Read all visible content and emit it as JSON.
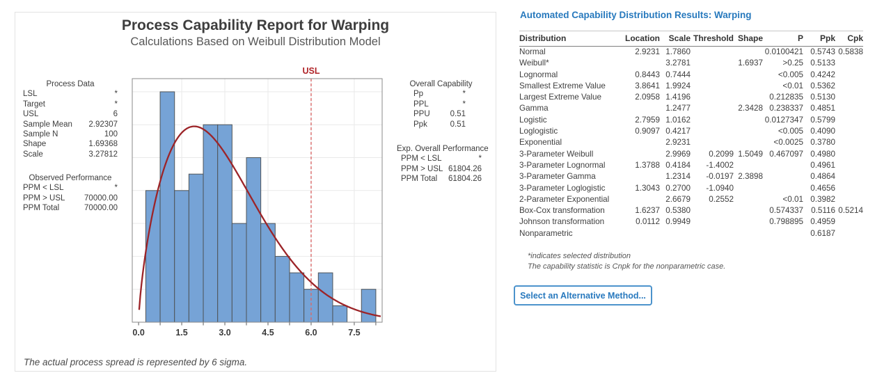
{
  "report": {
    "title": "Process Capability Report for Warping",
    "subtitle": "Calculations Based on Weibull Distribution Model",
    "footnote": "The actual process spread is represented by 6 sigma.",
    "process_data": {
      "heading": "Process Data",
      "rows": [
        [
          "LSL",
          "*"
        ],
        [
          "Target",
          "*"
        ],
        [
          "USL",
          "6"
        ],
        [
          "Sample Mean",
          "2.92307"
        ],
        [
          "Sample N",
          "100"
        ],
        [
          "Shape",
          "1.69368"
        ],
        [
          "Scale",
          "3.27812"
        ]
      ]
    },
    "observed_performance": {
      "heading": "Observed Performance",
      "rows": [
        [
          "PPM < LSL",
          "*"
        ],
        [
          "PPM > USL",
          "70000.00"
        ],
        [
          "PPM Total",
          "70000.00"
        ]
      ]
    },
    "overall_capability": {
      "heading": "Overall Capability",
      "rows": [
        [
          "Pp",
          "*"
        ],
        [
          "PPL",
          "*"
        ],
        [
          "PPU",
          "0.51"
        ],
        [
          "Ppk",
          "0.51"
        ]
      ]
    },
    "exp_overall_performance": {
      "heading": "Exp. Overall Performance",
      "rows": [
        [
          "PPM < LSL",
          "*"
        ],
        [
          "PPM > USL",
          "61804.26"
        ],
        [
          "PPM Total",
          "61804.26"
        ]
      ]
    }
  },
  "chart_data": {
    "type": "bar",
    "title": "Process Capability Report for Warping",
    "subtitle": "Calculations Based on Weibull Distribution Model",
    "xlabel": "",
    "ylabel": "",
    "xlim": [
      -0.22,
      8.47
    ],
    "ylim": [
      0,
      14.8
    ],
    "x_ticks": [
      0.0,
      1.5,
      3.0,
      4.5,
      6.0,
      7.5
    ],
    "x_minor_tick_step": 0.75,
    "grid_y_step": 2,
    "grid": "horizontal-and-vertical-at-major-ticks",
    "legend_position": "none",
    "histogram": {
      "bin_start": 0.25,
      "bin_width": 0.5,
      "bin_edges": [
        0.25,
        0.75,
        1.25,
        1.75,
        2.25,
        2.75,
        3.25,
        3.75,
        4.25,
        4.75,
        5.25,
        5.75,
        6.25,
        6.75,
        7.25,
        7.75,
        8.25
      ],
      "frequencies": [
        8,
        14,
        8,
        9,
        12,
        12,
        6,
        10,
        6,
        4,
        3,
        2,
        3,
        1,
        0,
        2
      ]
    },
    "fit_curve": {
      "distribution": "weibull",
      "shape": 1.69368,
      "scale": 3.27812,
      "sample_n": 100
    },
    "reference_lines": [
      {
        "label": "USL",
        "x": 6.0
      }
    ],
    "colors": {
      "bar_fill": "#76A3D6",
      "bar_stroke": "#4F5458",
      "curve": "#9C2428",
      "ref_line": "#D96A6A",
      "ref_label": "#B02428",
      "grid": "#E9E9E9",
      "frame": "#8A8A8A",
      "tick": "#5A5A5A",
      "tick_label": "#3A3A3A"
    }
  },
  "results_panel": {
    "title": "Automated Capability Distribution Results: Warping",
    "columns": [
      "Distribution",
      "Location",
      "Scale",
      "Threshold",
      "Shape",
      "P",
      "Ppk",
      "Cpk"
    ],
    "rows": [
      [
        "Normal",
        "2.9231",
        "1.7860",
        "",
        "",
        "0.0100421",
        "0.5743",
        "0.5838"
      ],
      [
        "Weibull*",
        "",
        "3.2781",
        "",
        "1.6937",
        ">0.25",
        "0.5133",
        ""
      ],
      [
        "Lognormal",
        "0.8443",
        "0.7444",
        "",
        "",
        "<0.005",
        "0.4242",
        ""
      ],
      [
        "Smallest Extreme Value",
        "3.8641",
        "1.9924",
        "",
        "",
        "<0.01",
        "0.5362",
        ""
      ],
      [
        "Largest Extreme Value",
        "2.0958",
        "1.4196",
        "",
        "",
        "0.212835",
        "0.5130",
        ""
      ],
      [
        "Gamma",
        "",
        "1.2477",
        "",
        "2.3428",
        "0.238337",
        "0.4851",
        ""
      ],
      [
        "Logistic",
        "2.7959",
        "1.0162",
        "",
        "",
        "0.0127347",
        "0.5799",
        ""
      ],
      [
        "Loglogistic",
        "0.9097",
        "0.4217",
        "",
        "",
        "<0.005",
        "0.4090",
        ""
      ],
      [
        "Exponential",
        "",
        "2.9231",
        "",
        "",
        "<0.0025",
        "0.3780",
        ""
      ],
      [
        "3-Parameter Weibull",
        "",
        "2.9969",
        "0.2099",
        "1.5049",
        "0.467097",
        "0.4980",
        ""
      ],
      [
        "3-Parameter Lognormal",
        "1.3788",
        "0.4184",
        "-1.4002",
        "",
        "",
        "0.4961",
        ""
      ],
      [
        "3-Parameter Gamma",
        "",
        "1.2314",
        "-0.0197",
        "2.3898",
        "",
        "0.4864",
        ""
      ],
      [
        "3-Parameter Loglogistic",
        "1.3043",
        "0.2700",
        "-1.0940",
        "",
        "",
        "0.4656",
        ""
      ],
      [
        "2-Parameter Exponential",
        "",
        "2.6679",
        "0.2552",
        "",
        "<0.01",
        "0.3982",
        ""
      ],
      [
        "Box-Cox transformation",
        "1.6237",
        "0.5380",
        "",
        "",
        "0.574337",
        "0.5116",
        "0.5214"
      ],
      [
        "Johnson transformation",
        "0.0112",
        "0.9949",
        "",
        "",
        "0.798895",
        "0.4959",
        ""
      ],
      [
        "Nonparametric",
        "",
        "",
        "",
        "",
        "",
        "0.6187",
        ""
      ]
    ],
    "notes": [
      "*indicates selected distribution",
      "The capability statistic is Cnpk for the nonparametric case."
    ],
    "button_label": "Select an Alternative Method...",
    "accent_color": "#2779BD"
  }
}
